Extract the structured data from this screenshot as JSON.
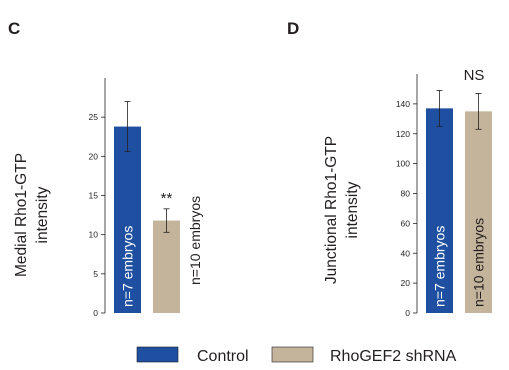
{
  "colors": {
    "control": "#1f4fa0",
    "shrna": "#c4b49b",
    "axis": "#231f20",
    "bar_text_light": "#ffffff",
    "bar_text_dark": "#231f20"
  },
  "legend": [
    {
      "label": "Control",
      "color": "#1f4fa0"
    },
    {
      "label": "RhoGEF2 shRNA",
      "color": "#c4b49b"
    }
  ],
  "chart_data": [
    {
      "type": "bar",
      "panel": "C",
      "ylabel": [
        "Medial Rho1-GTP",
        "intensity"
      ],
      "ylim": [
        0,
        30
      ],
      "yticks": [
        0,
        5,
        10,
        15,
        20,
        25
      ],
      "series": [
        {
          "name": "Control",
          "value": 23.8,
          "error": 3.2,
          "label": "n=7 embryos",
          "label_inside": true,
          "significance": ""
        },
        {
          "name": "RhoGEF2 shRNA",
          "value": 11.8,
          "error": 1.5,
          "label": "n=10 embryos",
          "label_inside": false,
          "significance": "**"
        }
      ]
    },
    {
      "type": "bar",
      "panel": "D",
      "ylabel": [
        "Junctional Rho1-GTP",
        "intensity"
      ],
      "ylim": [
        0,
        160
      ],
      "yticks": [
        0,
        20,
        40,
        60,
        80,
        100,
        120,
        140
      ],
      "series": [
        {
          "name": "Control",
          "value": 137,
          "error": 12,
          "label": "n=7 embryos",
          "label_inside": true,
          "significance": ""
        },
        {
          "name": "RhoGEF2 shRNA",
          "value": 135,
          "error": 12,
          "label": "n=10 embryos",
          "label_inside": true,
          "significance": ""
        }
      ],
      "annotation": "NS"
    }
  ]
}
